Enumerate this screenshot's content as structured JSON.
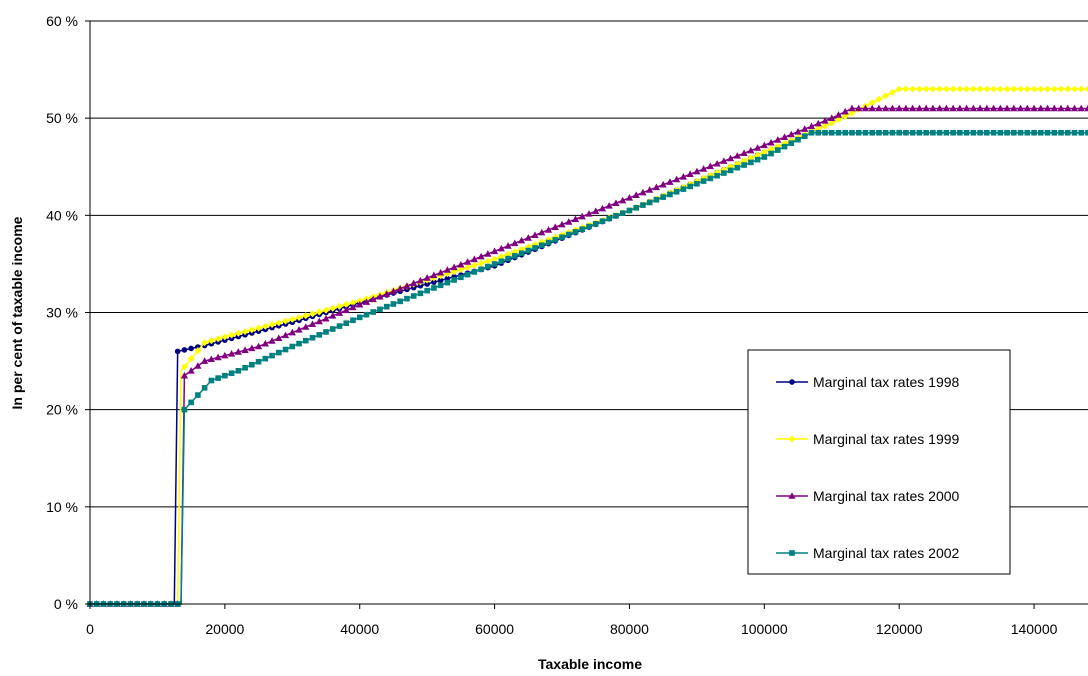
{
  "chart_data": {
    "type": "line",
    "title": "",
    "xlabel": "Taxable income",
    "ylabel": "In per cent of taxable income",
    "xlim": [
      0,
      148000
    ],
    "ylim": [
      0,
      60
    ],
    "x_ticks": [
      0,
      20000,
      40000,
      60000,
      80000,
      100000,
      120000,
      140000
    ],
    "y_ticks": [
      0,
      10,
      20,
      30,
      40,
      50,
      60
    ],
    "y_tick_labels": [
      "0 %",
      "10 %",
      "20 %",
      "30 %",
      "40 %",
      "50 %",
      "60 %"
    ],
    "grid": "horizontal",
    "legend_position": "right",
    "series": [
      {
        "name": "Marginal tax rates 1998",
        "color": "#000080",
        "marker": "circle",
        "points": [
          [
            0,
            0
          ],
          [
            12500,
            0
          ],
          [
            13000,
            26.0
          ],
          [
            17000,
            26.6
          ],
          [
            30000,
            29.0
          ],
          [
            45000,
            32.0
          ],
          [
            60000,
            34.8
          ],
          [
            80000,
            40.5
          ],
          [
            100000,
            46.5
          ],
          [
            107000,
            48.5
          ],
          [
            148000,
            48.5
          ]
        ]
      },
      {
        "name": "Marginal tax rates 1999",
        "color": "#ffff00",
        "marker": "diamond",
        "points": [
          [
            0,
            0
          ],
          [
            13000,
            0
          ],
          [
            13500,
            24.0
          ],
          [
            17000,
            26.9
          ],
          [
            20000,
            27.5
          ],
          [
            30000,
            29.3
          ],
          [
            40000,
            31.2
          ],
          [
            60000,
            35.5
          ],
          [
            80000,
            40.5
          ],
          [
            100000,
            46.5
          ],
          [
            110000,
            49.5
          ],
          [
            120000,
            53.0
          ],
          [
            148000,
            53.0
          ]
        ]
      },
      {
        "name": "Marginal tax rates 2000",
        "color": "#800080",
        "marker": "triangle",
        "points": [
          [
            0,
            0
          ],
          [
            13500,
            0
          ],
          [
            14000,
            23.5
          ],
          [
            17000,
            25.0
          ],
          [
            25000,
            26.5
          ],
          [
            40000,
            30.8
          ],
          [
            60000,
            36.3
          ],
          [
            80000,
            41.8
          ],
          [
            100000,
            47.2
          ],
          [
            110000,
            50.0
          ],
          [
            113000,
            51.0
          ],
          [
            148000,
            51.0
          ]
        ]
      },
      {
        "name": "Marginal tax rates 2002",
        "color": "#008080",
        "marker": "square",
        "points": [
          [
            0,
            0
          ],
          [
            13500,
            0
          ],
          [
            14000,
            20.0
          ],
          [
            16000,
            21.5
          ],
          [
            18000,
            23.0
          ],
          [
            22000,
            24.0
          ],
          [
            30000,
            26.5
          ],
          [
            40000,
            29.5
          ],
          [
            60000,
            35.0
          ],
          [
            80000,
            40.5
          ],
          [
            100000,
            46.0
          ],
          [
            107000,
            48.5
          ],
          [
            148000,
            48.5
          ]
        ]
      }
    ]
  }
}
